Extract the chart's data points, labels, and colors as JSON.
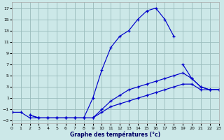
{
  "xlabel": "Graphe des températures (°c)",
  "x_hours": [
    0,
    1,
    2,
    3,
    4,
    5,
    6,
    7,
    8,
    9,
    10,
    11,
    12,
    13,
    14,
    15,
    16,
    17,
    18,
    19,
    20,
    21,
    22,
    23
  ],
  "curves": [
    {
      "y": [
        -1.5,
        -1.5,
        -2.5,
        -2.5,
        -2.5,
        -2.5,
        -2.5,
        -2.5,
        -2.5,
        1.0,
        6.0,
        10.0,
        12.0,
        13.0,
        15.0,
        16.5,
        17.0,
        15.0,
        12.0,
        null,
        null,
        null,
        null,
        null
      ]
    },
    {
      "y": [
        -1.5,
        null,
        null,
        null,
        null,
        null,
        null,
        null,
        null,
        null,
        null,
        null,
        null,
        null,
        null,
        null,
        null,
        null,
        null,
        7.0,
        4.5,
        3.0,
        2.5,
        2.5
      ]
    },
    {
      "y": [
        -1.5,
        null,
        -2.0,
        -2.5,
        -2.5,
        -2.5,
        -2.5,
        -2.5,
        -2.5,
        -2.5,
        -1.0,
        0.5,
        1.5,
        2.5,
        3.0,
        3.5,
        4.0,
        4.5,
        5.0,
        5.5,
        4.5,
        3.0,
        2.5,
        2.5
      ]
    },
    {
      "y": [
        -1.5,
        null,
        -2.0,
        -2.5,
        -2.5,
        -2.5,
        -2.5,
        -2.5,
        -2.5,
        -2.5,
        -1.5,
        -0.5,
        0.0,
        0.5,
        1.0,
        1.5,
        2.0,
        2.5,
        3.0,
        3.5,
        3.5,
        2.5,
        2.5,
        2.5
      ]
    }
  ],
  "line_color": "#0000cc",
  "background_color": "#cce8e8",
  "grid_color": "#99bbbb",
  "xlim": [
    0,
    23
  ],
  "ylim": [
    -3.5,
    18
  ],
  "yticks": [
    -3,
    -1,
    1,
    3,
    5,
    7,
    9,
    11,
    13,
    15,
    17
  ],
  "xticks": [
    0,
    1,
    2,
    3,
    4,
    5,
    6,
    7,
    8,
    9,
    10,
    11,
    12,
    13,
    14,
    15,
    16,
    17,
    18,
    19,
    20,
    21,
    22,
    23
  ]
}
